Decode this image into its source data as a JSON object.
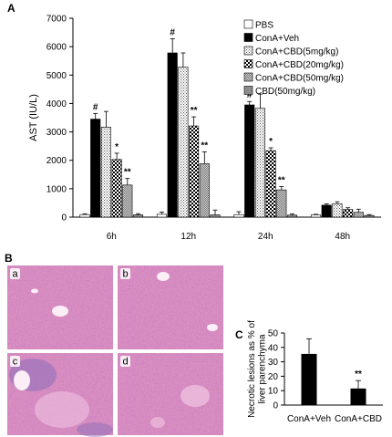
{
  "panels": {
    "a": "A",
    "b": "B",
    "c": "C"
  },
  "chart_data": [
    {
      "type": "bar",
      "ylabel": "AST (IU/L)",
      "ylim": [
        0,
        7000
      ],
      "yticks": [
        "0",
        "1000",
        "2000",
        "3000",
        "4000",
        "5000",
        "6000",
        "7000"
      ],
      "categories": [
        "6h",
        "12h",
        "24h",
        "48h"
      ],
      "legend_position": "top-right",
      "series": [
        {
          "name": "PBS",
          "pattern": "white",
          "values": [
            90,
            100,
            90,
            80
          ],
          "errors": [
            30,
            80,
            100,
            20
          ],
          "marks": [
            "",
            "",
            "",
            ""
          ]
        },
        {
          "name": "ConA+Veh",
          "pattern": "black",
          "values": [
            3450,
            5780,
            3950,
            420
          ],
          "errors": [
            200,
            500,
            120,
            50
          ],
          "marks": [
            "#",
            "#",
            "#",
            ""
          ]
        },
        {
          "name": "ConA+CBD(5mg/kg)",
          "pattern": "dots",
          "values": [
            3170,
            5280,
            3830,
            470
          ],
          "errors": [
            550,
            500,
            500,
            70
          ],
          "marks": [
            "",
            "",
            "",
            ""
          ]
        },
        {
          "name": "ConA+CBD(20mg/kg)",
          "pattern": "checker",
          "values": [
            2030,
            3210,
            2340,
            270
          ],
          "errors": [
            220,
            320,
            100,
            60
          ],
          "marks": [
            "*",
            "**",
            "*",
            ""
          ]
        },
        {
          "name": "ConA+CBD(50mg/kg)",
          "pattern": "dense",
          "values": [
            1130,
            1880,
            960,
            170
          ],
          "errors": [
            230,
            420,
            120,
            110
          ],
          "marks": [
            "**",
            "**",
            "**",
            ""
          ]
        },
        {
          "name": "CBD(50mg/kg)",
          "pattern": "gray",
          "values": [
            80,
            80,
            70,
            60
          ],
          "errors": [
            40,
            170,
            40,
            30
          ],
          "marks": [
            "",
            "",
            "",
            ""
          ]
        }
      ]
    },
    {
      "type": "bar",
      "ylabel": "Necrotic lesions as % of liver parenchyma",
      "ylabel_lines": [
        "Necrotic lesions as % of",
        "liver parenchyma"
      ],
      "ylim": [
        0,
        50
      ],
      "yticks": [
        "0",
        "10",
        "20",
        "30",
        "40",
        "50"
      ],
      "categories": [
        "ConA+Veh",
        "ConA+CBD"
      ],
      "values": [
        35.5,
        11.5
      ],
      "errors": [
        10.5,
        5.5
      ],
      "marks": [
        "",
        "**"
      ]
    }
  ],
  "micrographs": {
    "labels": [
      "a",
      "b",
      "c",
      "d"
    ]
  },
  "colors": {
    "bar_black": "#000000",
    "bar_gray": "#8c8c8c",
    "tissue_pink": "#d98fc0",
    "tissue_light": "#f0c8e3",
    "tissue_purple": "#8c6fb8"
  }
}
